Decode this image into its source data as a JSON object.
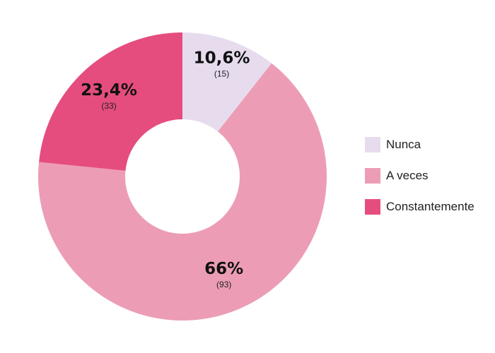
{
  "chart_data": {
    "type": "pie",
    "style": "donut",
    "categories": [
      "Nunca",
      "A veces",
      "Constantemente"
    ],
    "values": [
      10.6,
      66,
      23.4
    ],
    "value_labels": [
      "10,6%",
      "66%",
      "23,4%"
    ],
    "counts": [
      "(15)",
      "(93)",
      "(33)"
    ],
    "colors": [
      "#e6dcee",
      "#ec9db5",
      "#e54d7e"
    ],
    "legend_position": "right",
    "title": ""
  }
}
